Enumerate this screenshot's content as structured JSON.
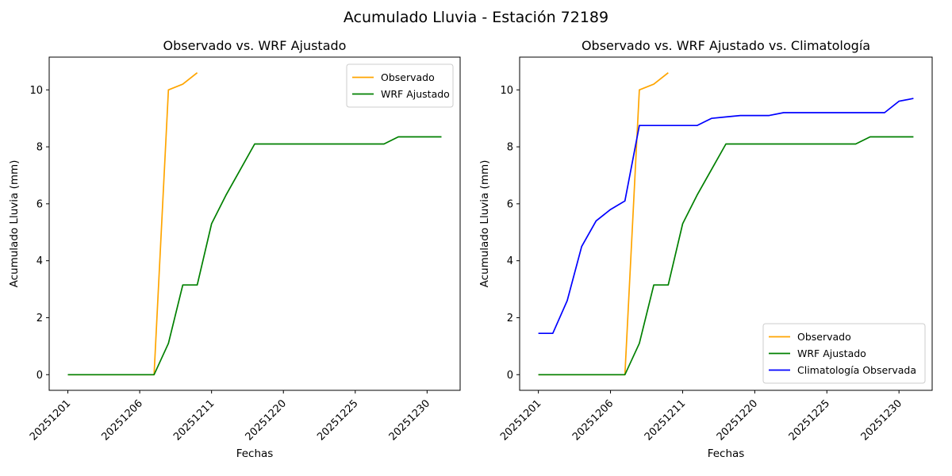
{
  "figure_title": "Acumulado Lluvia - Estación 72189",
  "chart_data": [
    {
      "type": "line",
      "title": "Observado vs. WRF Ajustado",
      "xlabel": "Fechas",
      "ylabel": "Acumulado Lluvia (mm)",
      "xlim": [
        -1.3,
        27.3
      ],
      "ylim": [
        -0.55,
        11.15
      ],
      "yticks": [
        0,
        2,
        4,
        6,
        8,
        10
      ],
      "xticks": [
        0,
        5,
        10,
        15,
        20,
        25
      ],
      "xtick_labels": [
        "20251201",
        "20251206",
        "20251211",
        "20251220",
        "20251225",
        "20251230"
      ],
      "grid": false,
      "legend_position": "upper-right",
      "series": [
        {
          "name": "Observado",
          "color": "#FFA500",
          "x": [
            0,
            1,
            2,
            3,
            4,
            5,
            6,
            7,
            8,
            9
          ],
          "y": [
            0,
            0,
            0,
            0,
            0,
            0,
            0,
            10.0,
            10.2,
            10.6
          ]
        },
        {
          "name": "WRF Ajustado",
          "color": "#008000",
          "x": [
            0,
            1,
            2,
            3,
            4,
            5,
            6,
            7,
            8,
            9,
            10,
            11,
            12,
            13,
            14,
            15,
            16,
            17,
            18,
            19,
            20,
            21,
            22,
            23,
            24,
            25,
            26
          ],
          "y": [
            0,
            0,
            0,
            0,
            0,
            0,
            0,
            1.1,
            3.15,
            3.15,
            5.3,
            6.3,
            7.2,
            8.1,
            8.1,
            8.1,
            8.1,
            8.1,
            8.1,
            8.1,
            8.1,
            8.1,
            8.1,
            8.35,
            8.35,
            8.35,
            8.35
          ]
        }
      ]
    },
    {
      "type": "line",
      "title": "Observado vs. WRF Ajustado vs. Climatología",
      "xlabel": "Fechas",
      "ylabel": "Acumulado Lluvia (mm)",
      "xlim": [
        -1.3,
        27.3
      ],
      "ylim": [
        -0.55,
        11.15
      ],
      "yticks": [
        0,
        2,
        4,
        6,
        8,
        10
      ],
      "xticks": [
        0,
        5,
        10,
        15,
        20,
        25
      ],
      "xtick_labels": [
        "20251201",
        "20251206",
        "20251211",
        "20251220",
        "20251225",
        "20251230"
      ],
      "grid": false,
      "legend_position": "lower-right",
      "series": [
        {
          "name": "Observado",
          "color": "#FFA500",
          "x": [
            0,
            1,
            2,
            3,
            4,
            5,
            6,
            7,
            8,
            9
          ],
          "y": [
            0,
            0,
            0,
            0,
            0,
            0,
            0,
            10.0,
            10.2,
            10.6
          ]
        },
        {
          "name": "WRF Ajustado",
          "color": "#008000",
          "x": [
            0,
            1,
            2,
            3,
            4,
            5,
            6,
            7,
            8,
            9,
            10,
            11,
            12,
            13,
            14,
            15,
            16,
            17,
            18,
            19,
            20,
            21,
            22,
            23,
            24,
            25,
            26
          ],
          "y": [
            0,
            0,
            0,
            0,
            0,
            0,
            0,
            1.1,
            3.15,
            3.15,
            5.3,
            6.3,
            7.2,
            8.1,
            8.1,
            8.1,
            8.1,
            8.1,
            8.1,
            8.1,
            8.1,
            8.1,
            8.1,
            8.35,
            8.35,
            8.35,
            8.35
          ]
        },
        {
          "name": "Climatología Observada",
          "color": "#0000FF",
          "x": [
            0,
            1,
            2,
            3,
            4,
            5,
            6,
            7,
            8,
            9,
            10,
            11,
            12,
            13,
            14,
            15,
            16,
            17,
            18,
            19,
            20,
            21,
            22,
            23,
            24,
            25,
            26
          ],
          "y": [
            1.45,
            1.45,
            2.6,
            4.5,
            5.4,
            5.8,
            6.1,
            8.75,
            8.75,
            8.75,
            8.75,
            8.75,
            9.0,
            9.05,
            9.1,
            9.1,
            9.1,
            9.2,
            9.2,
            9.2,
            9.2,
            9.2,
            9.2,
            9.2,
            9.2,
            9.6,
            9.7
          ]
        }
      ]
    }
  ]
}
